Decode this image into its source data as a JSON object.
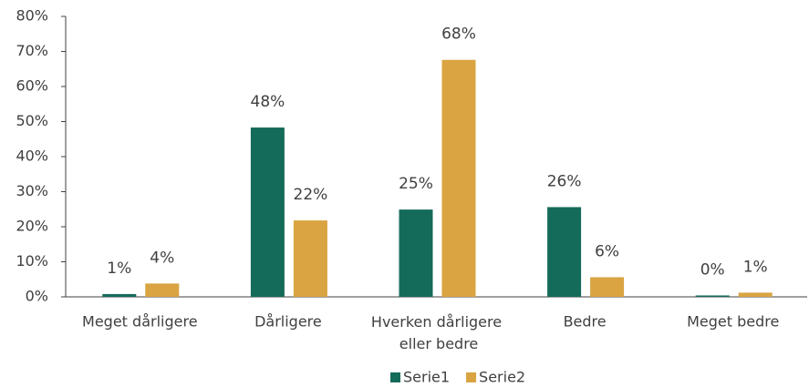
{
  "chart_data": {
    "type": "bar",
    "categories": [
      "Meget dårligere",
      "Dårligere",
      "Hverken dårligere eller bedre",
      "Bedre",
      "Meget bedre"
    ],
    "series": [
      {
        "name": "Serie1",
        "color": "#156b5a",
        "values": [
          0.8,
          48.3,
          24.9,
          25.6,
          0.4
        ],
        "value_labels": [
          "1%",
          "48%",
          "25%",
          "26%",
          "0%"
        ]
      },
      {
        "name": "Serie2",
        "color": "#d9a441",
        "values": [
          3.8,
          21.8,
          67.6,
          5.6,
          1.2
        ],
        "value_labels": [
          "4%",
          "22%",
          "68%",
          "6%",
          "1%"
        ]
      }
    ],
    "ylim": [
      0,
      80
    ],
    "yticks": [
      {
        "value": 0,
        "label": "0%"
      },
      {
        "value": 10,
        "label": "10%"
      },
      {
        "value": 20,
        "label": "20%"
      },
      {
        "value": 30,
        "label": "30%"
      },
      {
        "value": 40,
        "label": "40%"
      },
      {
        "value": 50,
        "label": "50%"
      },
      {
        "value": 60,
        "label": "60%"
      },
      {
        "value": 70,
        "label": "70%"
      },
      {
        "value": 80,
        "label": "80%"
      }
    ],
    "legend": "bottom"
  }
}
